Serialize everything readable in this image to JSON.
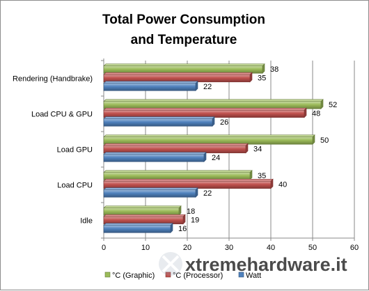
{
  "chart_data": {
    "type": "bar",
    "orientation": "horizontal",
    "title": [
      "Total Power Consumption",
      "and Temperature"
    ],
    "categories": [
      "Rendering (Handbrake)",
      "Load CPU & GPU",
      "Load GPU",
      "Load CPU",
      "Idle"
    ],
    "series": [
      {
        "name": "°C (Graphic)",
        "color": "#9bbb59",
        "values": [
          38,
          52,
          50,
          35,
          18
        ]
      },
      {
        "name": "°C (Processor)",
        "color": "#c0504d",
        "values": [
          35,
          48,
          34,
          40,
          19
        ]
      },
      {
        "name": "Watt",
        "color": "#4f81bd",
        "values": [
          22,
          26,
          24,
          22,
          16
        ]
      }
    ],
    "xlim": [
      0,
      60
    ],
    "xticks": [
      0,
      10,
      20,
      30,
      40,
      50,
      60
    ],
    "grid": "vertical",
    "legend_position": "bottom",
    "bar_style": "3d"
  },
  "watermark": {
    "text": "xtremehardware.it"
  }
}
